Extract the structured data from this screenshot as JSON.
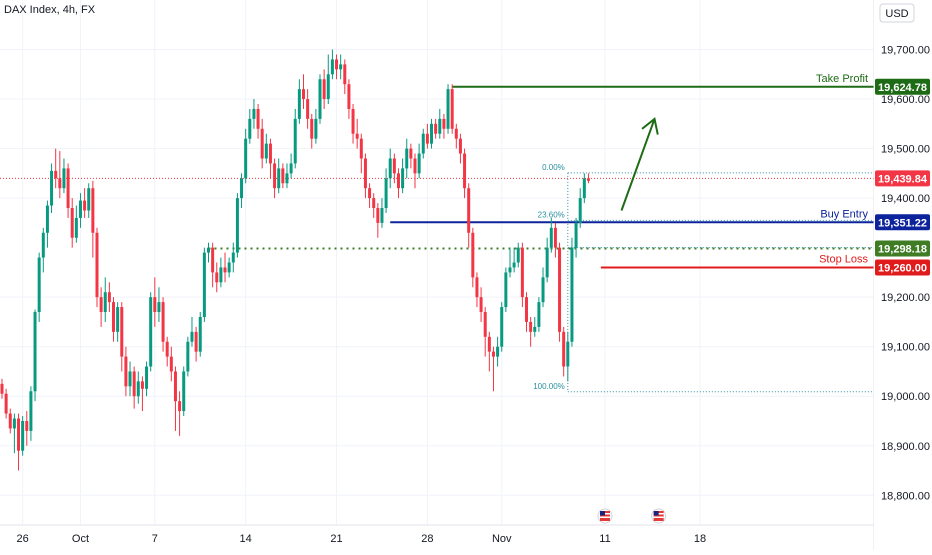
{
  "header": {
    "symbol_label": "DAX Index, 4h, FX"
  },
  "currency": "USD",
  "colors": {
    "up": "#089981",
    "down": "#f23645",
    "take_profit": "#1e6b15",
    "buy_entry": "#0c239c",
    "stop_loss": "#e01b1b",
    "support": "#1e6b15",
    "fib": "#2b8fa0",
    "arrow": "#1e6b15",
    "grid": "#f0f3fa",
    "axis_text": "#131722",
    "last_price": "#f23645",
    "support_badge": "#3f7c24"
  },
  "chart_data": {
    "type": "candlestick",
    "ylim": [
      18740,
      19800
    ],
    "y_ticks": [
      {
        "value": 19700,
        "label": "19,700.00"
      },
      {
        "value": 19600,
        "label": "19,600.00"
      },
      {
        "value": 19500,
        "label": "19,500.00"
      },
      {
        "value": 19400,
        "label": "19,400.00"
      },
      {
        "value": 19200,
        "label": "19,200.00"
      },
      {
        "value": 19100,
        "label": "19,100.00"
      },
      {
        "value": 19000,
        "label": "19,000.00"
      },
      {
        "value": 18900,
        "label": "18,900.00"
      },
      {
        "value": 18800,
        "label": "18,800.00"
      }
    ],
    "x_ticks": [
      {
        "index": 5,
        "label": "26"
      },
      {
        "index": 19,
        "label": "Oct"
      },
      {
        "index": 37,
        "label": "7"
      },
      {
        "index": 59,
        "label": "14"
      },
      {
        "index": 81,
        "label": "21"
      },
      {
        "index": 103,
        "label": "28"
      },
      {
        "index": 121,
        "label": "Nov"
      },
      {
        "index": 146,
        "label": "11"
      },
      {
        "index": 169,
        "label": "18"
      }
    ],
    "levels": [
      {
        "name": "Take Profit",
        "value": 19624.78,
        "badge": "19,624.78",
        "color_key": "take_profit",
        "start_index": 109,
        "style": "solid"
      },
      {
        "name": "Buy Entry",
        "value": 19351.22,
        "badge": "19,351.22",
        "color_key": "buy_entry",
        "start_index": 94,
        "style": "solid"
      },
      {
        "name": "",
        "value": 19298.18,
        "badge": "19,298.18",
        "color_key": "support_badge",
        "start_index": 50,
        "style": "dotted"
      },
      {
        "name": "Stop Loss",
        "value": 19260.0,
        "badge": "19,260.00",
        "color_key": "stop_loss",
        "start_index": 145,
        "style": "solid"
      }
    ],
    "last_price": {
      "value": 19439.84,
      "badge": "19,439.84"
    },
    "fib": {
      "start_index": 137,
      "levels": [
        {
          "label": "0.00%",
          "value": 19451
        },
        {
          "label": "23.60%",
          "value": 19355
        },
        {
          "label": "",
          "value": 19300
        },
        {
          "label": "100.00%",
          "value": 19009
        }
      ]
    },
    "arrow": {
      "from": {
        "index": 150,
        "value": 19375
      },
      "to": {
        "index": 158,
        "value": 19560
      }
    },
    "event_markers": [
      {
        "index": 146
      },
      {
        "index": 159
      }
    ],
    "candles": [
      [
        19025,
        19005,
        19035,
        18995
      ],
      [
        19005,
        18965,
        19015,
        18955
      ],
      [
        18965,
        18935,
        18975,
        18925
      ],
      [
        18935,
        18955,
        18965,
        18885
      ],
      [
        18955,
        18890,
        18965,
        18850
      ],
      [
        18890,
        18950,
        18960,
        18880
      ],
      [
        18950,
        18930,
        18970,
        18900
      ],
      [
        18930,
        19010,
        19020,
        18910
      ],
      [
        19010,
        19170,
        19175,
        18990
      ],
      [
        19170,
        19280,
        19290,
        19150
      ],
      [
        19280,
        19330,
        19340,
        19250
      ],
      [
        19330,
        19385,
        19395,
        19300
      ],
      [
        19385,
        19455,
        19470,
        19370
      ],
      [
        19455,
        19440,
        19500,
        19420
      ],
      [
        19440,
        19420,
        19495,
        19400
      ],
      [
        19420,
        19460,
        19480,
        19410
      ],
      [
        19460,
        19380,
        19470,
        19360
      ],
      [
        19380,
        19320,
        19400,
        19300
      ],
      [
        19320,
        19360,
        19385,
        19310
      ],
      [
        19360,
        19395,
        19410,
        19340
      ],
      [
        19395,
        19375,
        19420,
        19360
      ],
      [
        19375,
        19420,
        19430,
        19360
      ],
      [
        19420,
        19330,
        19435,
        19280
      ],
      [
        19330,
        19200,
        19340,
        19180
      ],
      [
        19200,
        19170,
        19220,
        19140
      ],
      [
        19170,
        19210,
        19240,
        19150
      ],
      [
        19210,
        19190,
        19230,
        19170
      ],
      [
        19190,
        19130,
        19200,
        19110
      ],
      [
        19130,
        19180,
        19190,
        19110
      ],
      [
        19180,
        19080,
        19190,
        19050
      ],
      [
        19080,
        19020,
        19100,
        19000
      ],
      [
        19020,
        19050,
        19070,
        19000
      ],
      [
        19050,
        19000,
        19060,
        18975
      ],
      [
        19000,
        19030,
        19050,
        18985
      ],
      [
        19030,
        19015,
        19040,
        18970
      ],
      [
        19015,
        19060,
        19070,
        19000
      ],
      [
        19060,
        19200,
        19210,
        19050
      ],
      [
        19200,
        19170,
        19240,
        19140
      ],
      [
        19170,
        19190,
        19220,
        19150
      ],
      [
        19190,
        19110,
        19200,
        19090
      ],
      [
        19110,
        19080,
        19120,
        19060
      ],
      [
        19080,
        19050,
        19100,
        19030
      ],
      [
        19050,
        18990,
        19060,
        18930
      ],
      [
        18990,
        18970,
        19010,
        18920
      ],
      [
        18970,
        19050,
        19060,
        18960
      ],
      [
        19050,
        19110,
        19120,
        19040
      ],
      [
        19110,
        19130,
        19160,
        19100
      ],
      [
        19130,
        19090,
        19140,
        19070
      ],
      [
        19090,
        19160,
        19170,
        19080
      ],
      [
        19160,
        19290,
        19300,
        19150
      ],
      [
        19290,
        19300,
        19310,
        19270
      ],
      [
        19300,
        19250,
        19310,
        19220
      ],
      [
        19250,
        19230,
        19270,
        19210
      ],
      [
        19230,
        19260,
        19280,
        19220
      ],
      [
        19260,
        19250,
        19290,
        19230
      ],
      [
        19250,
        19270,
        19280,
        19240
      ],
      [
        19270,
        19290,
        19310,
        19250
      ],
      [
        19290,
        19400,
        19410,
        19280
      ],
      [
        19400,
        19440,
        19450,
        19380
      ],
      [
        19440,
        19520,
        19540,
        19430
      ],
      [
        19520,
        19560,
        19580,
        19510
      ],
      [
        19560,
        19580,
        19600,
        19540
      ],
      [
        19580,
        19540,
        19590,
        19520
      ],
      [
        19540,
        19480,
        19560,
        19460
      ],
      [
        19480,
        19510,
        19530,
        19470
      ],
      [
        19510,
        19470,
        19520,
        19440
      ],
      [
        19470,
        19420,
        19480,
        19400
      ],
      [
        19420,
        19460,
        19480,
        19410
      ],
      [
        19460,
        19430,
        19470,
        19420
      ],
      [
        19430,
        19450,
        19470,
        19420
      ],
      [
        19450,
        19470,
        19490,
        19440
      ],
      [
        19470,
        19560,
        19580,
        19460
      ],
      [
        19560,
        19620,
        19640,
        19550
      ],
      [
        19620,
        19600,
        19650,
        19580
      ],
      [
        19600,
        19560,
        19620,
        19540
      ],
      [
        19560,
        19520,
        19570,
        19500
      ],
      [
        19520,
        19560,
        19580,
        19510
      ],
      [
        19560,
        19640,
        19650,
        19550
      ],
      [
        19640,
        19600,
        19660,
        19580
      ],
      [
        19600,
        19650,
        19690,
        19590
      ],
      [
        19650,
        19680,
        19700,
        19640
      ],
      [
        19680,
        19660,
        19690,
        19640
      ],
      [
        19660,
        19670,
        19690,
        19640
      ],
      [
        19670,
        19630,
        19680,
        19610
      ],
      [
        19630,
        19580,
        19640,
        19560
      ],
      [
        19580,
        19530,
        19590,
        19510
      ],
      [
        19530,
        19520,
        19560,
        19500
      ],
      [
        19520,
        19480,
        19530,
        19450
      ],
      [
        19480,
        19420,
        19490,
        19400
      ],
      [
        19420,
        19400,
        19430,
        19380
      ],
      [
        19400,
        19380,
        19410,
        19360
      ],
      [
        19380,
        19350,
        19390,
        19320
      ],
      [
        19350,
        19380,
        19400,
        19340
      ],
      [
        19380,
        19440,
        19460,
        19370
      ],
      [
        19440,
        19480,
        19500,
        19420
      ],
      [
        19480,
        19450,
        19490,
        19430
      ],
      [
        19450,
        19420,
        19460,
        19400
      ],
      [
        19420,
        19460,
        19480,
        19410
      ],
      [
        19460,
        19500,
        19520,
        19440
      ],
      [
        19500,
        19480,
        19510,
        19460
      ],
      [
        19480,
        19450,
        19490,
        19420
      ],
      [
        19450,
        19490,
        19510,
        19440
      ],
      [
        19490,
        19530,
        19540,
        19480
      ],
      [
        19530,
        19510,
        19550,
        19500
      ],
      [
        19510,
        19550,
        19560,
        19500
      ],
      [
        19550,
        19530,
        19560,
        19520
      ],
      [
        19530,
        19560,
        19580,
        19520
      ],
      [
        19560,
        19540,
        19570,
        19520
      ],
      [
        19540,
        19620,
        19630,
        19530
      ],
      [
        19620,
        19540,
        19630,
        19530
      ],
      [
        19540,
        19520,
        19550,
        19500
      ],
      [
        19520,
        19490,
        19530,
        19470
      ],
      [
        19490,
        19420,
        19500,
        19400
      ],
      [
        19420,
        19330,
        19430,
        19300
      ],
      [
        19330,
        19240,
        19340,
        19220
      ],
      [
        19240,
        19200,
        19250,
        19180
      ],
      [
        19200,
        19170,
        19220,
        19150
      ],
      [
        19170,
        19120,
        19180,
        19080
      ],
      [
        19120,
        19090,
        19130,
        19050
      ],
      [
        19090,
        19080,
        19100,
        19010
      ],
      [
        19080,
        19100,
        19120,
        19060
      ],
      [
        19100,
        19180,
        19190,
        19090
      ],
      [
        19180,
        19250,
        19260,
        19170
      ],
      [
        19250,
        19260,
        19300,
        19240
      ],
      [
        19260,
        19270,
        19300,
        19250
      ],
      [
        19270,
        19300,
        19310,
        19260
      ],
      [
        19300,
        19200,
        19310,
        19180
      ],
      [
        19200,
        19150,
        19210,
        19130
      ],
      [
        19150,
        19130,
        19160,
        19100
      ],
      [
        19130,
        19140,
        19160,
        19120
      ],
      [
        19140,
        19190,
        19200,
        19130
      ],
      [
        19190,
        19240,
        19260,
        19180
      ],
      [
        19240,
        19300,
        19320,
        19230
      ],
      [
        19300,
        19340,
        19360,
        19290
      ],
      [
        19340,
        19300,
        19350,
        19280
      ],
      [
        19300,
        19130,
        19310,
        19110
      ],
      [
        19130,
        19060,
        19140,
        19040
      ],
      [
        19060,
        19110,
        19130,
        19030
      ],
      [
        19110,
        19300,
        19320,
        19100
      ],
      [
        19300,
        19350,
        19360,
        19280
      ],
      [
        19350,
        19400,
        19420,
        19340
      ],
      [
        19400,
        19440,
        19450,
        19390
      ],
      [
        19440,
        19435,
        19450,
        19430
      ]
    ]
  }
}
